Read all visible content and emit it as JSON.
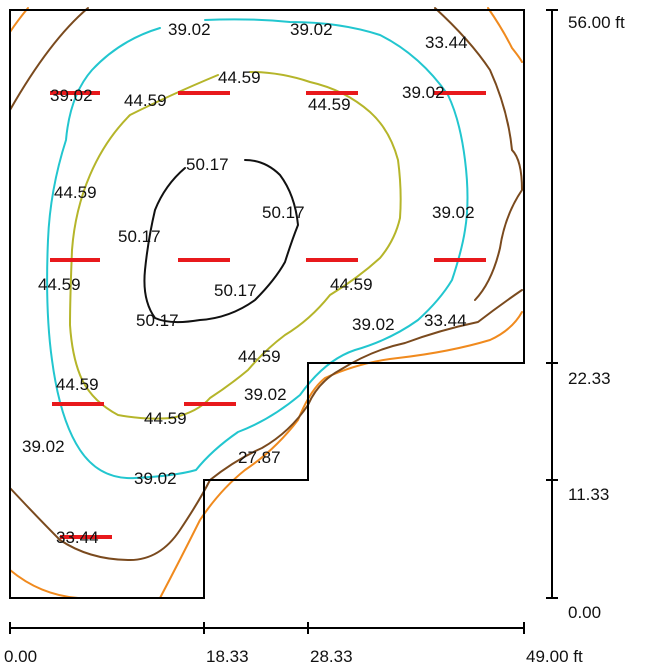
{
  "colors": {
    "contour_50_17": "#111111",
    "contour_44_59": "#b5b52a",
    "contour_39_02": "#22c6cf",
    "contour_33_44": "#7a4a1e",
    "contour_27_87": "#f08a1e",
    "luminaire": "#e8191c",
    "outline": "#000000"
  },
  "contour_labels": {
    "l01": "39.02",
    "l02": "39.02",
    "l03": "33.44",
    "l04": "44.59",
    "l05": "39.02",
    "l06": "44.59",
    "l07": "44.59",
    "l08": "39.02",
    "l09": "50.17",
    "l10": "44.59",
    "l11": "50.17",
    "l12": "39.02",
    "l13": "50.17",
    "l14": "44.59",
    "l15": "50.17",
    "l16": "44.59",
    "l17": "50.17",
    "l18": "39.02",
    "l19": "33.44",
    "l20": "44.59",
    "l21": "44.59",
    "l22": "39.02",
    "l23": "44.59",
    "l24": "39.02",
    "l25": "27.87",
    "l26": "39.02",
    "l27": "33.44"
  },
  "x_axis": {
    "ticks": [
      "0.00",
      "18.33",
      "28.33",
      "49.00 ft"
    ]
  },
  "y_axis": {
    "ticks": [
      "56.00 ft",
      "22.33",
      "11.33",
      "0.00"
    ]
  }
}
